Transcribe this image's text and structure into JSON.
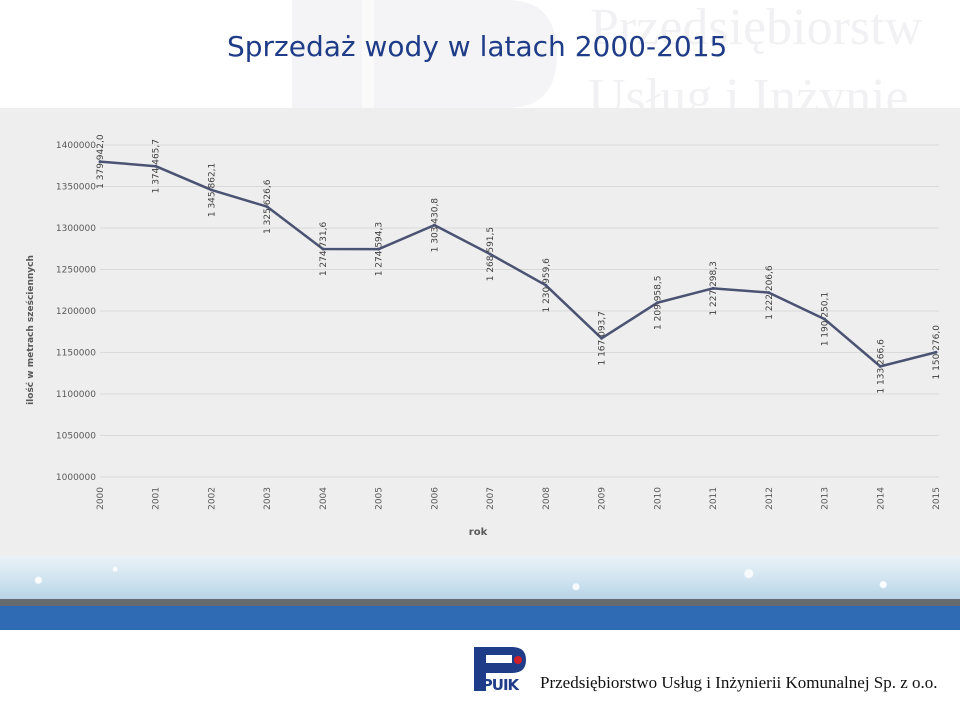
{
  "slide": {
    "title": "Sprzedaż wody w latach 2000-2015",
    "watermark_line1": "Przedsiębiorstw",
    "watermark_line2": "Usług i Inżynie",
    "footer_company": "Przedsiębiorstwo Usług i Inżynierii Komunalnej Sp. z o.o.",
    "logo_text": "PUIK"
  },
  "chart_data": {
    "type": "line",
    "title": "",
    "xlabel": "rok",
    "ylabel": "ilość w metrach sześciennych",
    "categories": [
      "2000",
      "2001",
      "2002",
      "2003",
      "2004",
      "2005",
      "2006",
      "2007",
      "2008",
      "2009",
      "2010",
      "2011",
      "2012",
      "2013",
      "2014",
      "2015"
    ],
    "values": [
      1379942.0,
      1374465.7,
      1345862.1,
      1325626.6,
      1274731.6,
      1274594.3,
      1303430.8,
      1268591.5,
      1230959.6,
      1167093.7,
      1209958.5,
      1227298.3,
      1222206.6,
      1190250.1,
      1133266.6,
      1150276.0
    ],
    "data_labels": [
      "1 379 942,0",
      "1 374 465,7",
      "1 345 862,1",
      "1 325 626,6",
      "1 274 731,6",
      "1 274 594,3",
      "1 303 430,8",
      "1 268 591,5",
      "1 230 959,6",
      "1 167 093,7",
      "1 209 958,5",
      "1 227 298,3",
      "1 222 206,6",
      "1 190 250,1",
      "1 133 266,6",
      "1 150 276,0"
    ],
    "yticks": [
      "1000000",
      "1050000",
      "1100000",
      "1150000",
      "1200000",
      "1250000",
      "1300000",
      "1350000",
      "1400000"
    ],
    "ylim": [
      1000000,
      1400000
    ],
    "grid": true,
    "line_color": "#4b5373"
  }
}
